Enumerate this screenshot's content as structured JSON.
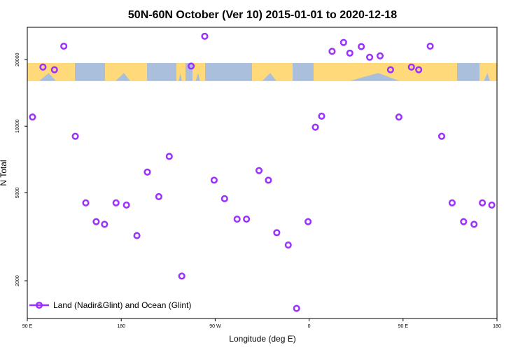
{
  "colors": {
    "point": "#9b30ff",
    "band_ocean": "#a9bfdc",
    "band_land": "#ffd97a",
    "axis": "#000000"
  },
  "chart_data": {
    "type": "scatter",
    "title": "50N-60N October (Ver 10)   2015-01-01 to 2020-12-18",
    "xlabel": "Longitude (deg E)",
    "ylabel": "N Total",
    "x_scale": "linear",
    "y_scale": "log",
    "xlim": [
      90,
      540
    ],
    "ylim": [
      1350,
      28000
    ],
    "x_ticks": [
      {
        "value": 90,
        "label": "90 E"
      },
      {
        "value": 180,
        "label": "180"
      },
      {
        "value": 270,
        "label": "90 W"
      },
      {
        "value": 360,
        "label": "0"
      },
      {
        "value": 450,
        "label": "90 E"
      },
      {
        "value": 540,
        "label": "180"
      }
    ],
    "y_ticks": [
      {
        "value": 2000,
        "label": "2000"
      },
      {
        "value": 5000,
        "label": "5000"
      },
      {
        "value": 10000,
        "label": "10000"
      },
      {
        "value": 20000,
        "label": "20000"
      }
    ],
    "grid": false,
    "legend": {
      "position": "bottom-left",
      "entries": [
        "Land (Nadir&Glint) and Ocean (Glint)"
      ]
    },
    "series": [
      {
        "name": "Land (Nadir&Glint) and Ocean (Glint)",
        "x": [
          95,
          105,
          116,
          125,
          136,
          146,
          156,
          164,
          175,
          185,
          195,
          205,
          216,
          226,
          238,
          247,
          260,
          269,
          279,
          291,
          300,
          312,
          321,
          329,
          340,
          348,
          359,
          366,
          372,
          382,
          393,
          399,
          410,
          418,
          428,
          438,
          446,
          458,
          465,
          476,
          487,
          497,
          508,
          518,
          526,
          535
        ],
        "y": [
          11000,
          18500,
          18000,
          23000,
          9000,
          4500,
          3700,
          3600,
          4500,
          4400,
          3200,
          6200,
          4800,
          7300,
          2100,
          18700,
          25500,
          5700,
          4700,
          3800,
          3800,
          6300,
          5700,
          3300,
          2900,
          1500,
          3700,
          9900,
          11100,
          21800,
          23900,
          21400,
          22900,
          20500,
          20800,
          18000,
          11000,
          18500,
          18000,
          23000,
          9000,
          4500,
          3700,
          3600,
          4500,
          4400
        ]
      }
    ],
    "background_band": {
      "description": "world map strip",
      "y_range": [
        16000,
        19300
      ]
    }
  }
}
